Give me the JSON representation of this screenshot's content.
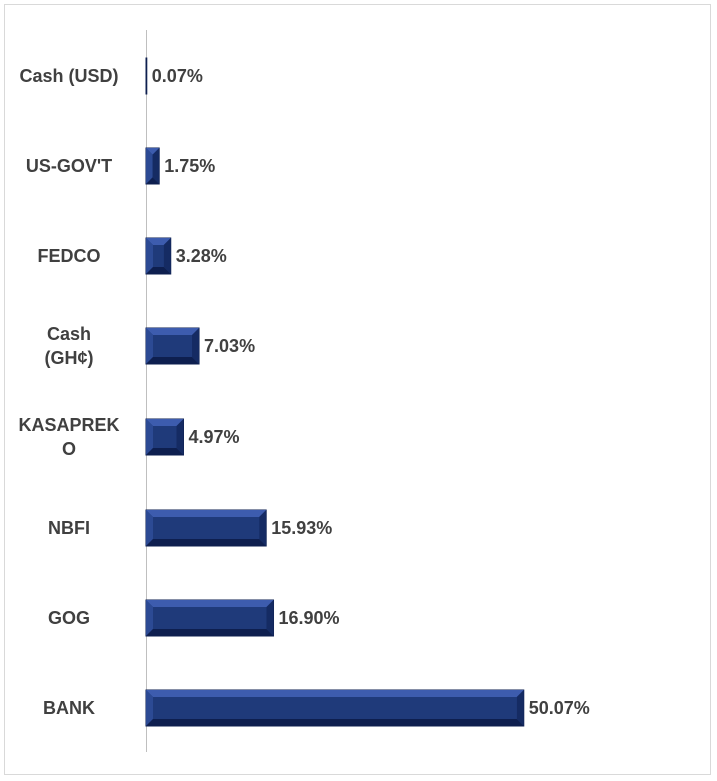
{
  "chart_data": {
    "type": "bar",
    "orientation": "horizontal",
    "categories": [
      "Cash (USD)",
      "US-GOV'T",
      "FEDCO",
      "Cash (GH¢)",
      "KASAPREKO",
      "NBFI",
      "GOG",
      "BANK"
    ],
    "category_lines": [
      [
        "Cash (USD)"
      ],
      [
        "US-GOV'T"
      ],
      [
        "FEDCO"
      ],
      [
        "Cash",
        "(GH¢)"
      ],
      [
        "KASAPREK",
        "O"
      ],
      [
        "NBFI"
      ],
      [
        "GOG"
      ],
      [
        "BANK"
      ]
    ],
    "values": [
      0.07,
      1.75,
      3.28,
      7.03,
      4.97,
      15.93,
      16.9,
      50.07
    ],
    "value_labels": [
      "0.07%",
      "1.75%",
      "3.28%",
      "7.03%",
      "4.97%",
      "15.93%",
      "16.90%",
      "50.07%"
    ],
    "xlim": [
      0,
      60
    ],
    "grid": false,
    "legend": "none",
    "colors": {
      "bar": "#1f3a7a",
      "bar_light": "#3d5cae",
      "bar_dark": "#0e1f4f",
      "text": "#404040",
      "axis": "#bfbfbf"
    }
  }
}
